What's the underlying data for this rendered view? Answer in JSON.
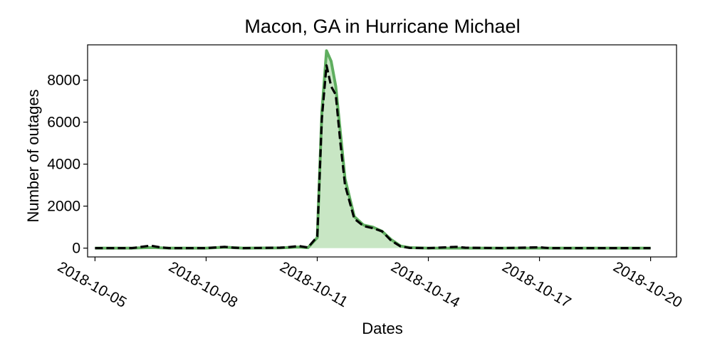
{
  "chart_data": {
    "type": "area",
    "title": "Macon, GA in Hurricane Michael",
    "xlabel": "Dates",
    "ylabel": "Number of outages",
    "x_start": "2018-10-05",
    "x_end": "2018-10-20",
    "xlim": [
      "2018-10-04T19:12",
      "2018-10-20T16:48"
    ],
    "ylim": [
      -420,
      9680
    ],
    "x_ticks": [
      "2018-10-05",
      "2018-10-08",
      "2018-10-11",
      "2018-10-14",
      "2018-10-17",
      "2018-10-20"
    ],
    "y_ticks": [
      0,
      2000,
      4000,
      6000,
      8000
    ],
    "grid": false,
    "legend": "none",
    "series": [
      {
        "style": "filled area, solid green line",
        "color": "#5fae5f",
        "fill": "#c8e6c4",
        "points": [
          [
            "2018-10-05T00:00",
            0
          ],
          [
            "2018-10-06T00:00",
            0
          ],
          [
            "2018-10-06T12:00",
            30
          ],
          [
            "2018-10-07T00:00",
            0
          ],
          [
            "2018-10-08T00:00",
            0
          ],
          [
            "2018-10-08T12:00",
            40
          ],
          [
            "2018-10-09T00:00",
            0
          ],
          [
            "2018-10-10T00:00",
            10
          ],
          [
            "2018-10-10T12:00",
            50
          ],
          [
            "2018-10-10T18:00",
            20
          ],
          [
            "2018-10-11T00:00",
            500
          ],
          [
            "2018-10-11T03:00",
            6500
          ],
          [
            "2018-10-11T06:00",
            9400
          ],
          [
            "2018-10-11T09:00",
            8900
          ],
          [
            "2018-10-11T12:00",
            7700
          ],
          [
            "2018-10-11T15:00",
            5500
          ],
          [
            "2018-10-11T18:00",
            3300
          ],
          [
            "2018-10-12T00:00",
            1500
          ],
          [
            "2018-10-12T06:00",
            1100
          ],
          [
            "2018-10-12T12:00",
            1000
          ],
          [
            "2018-10-12T18:00",
            800
          ],
          [
            "2018-10-13T00:00",
            400
          ],
          [
            "2018-10-13T06:00",
            100
          ],
          [
            "2018-10-13T12:00",
            20
          ],
          [
            "2018-10-14T00:00",
            0
          ],
          [
            "2018-10-15T00:00",
            0
          ],
          [
            "2018-10-16T00:00",
            0
          ],
          [
            "2018-10-17T00:00",
            0
          ],
          [
            "2018-10-18T00:00",
            0
          ],
          [
            "2018-10-19T00:00",
            0
          ],
          [
            "2018-10-20T00:00",
            0
          ]
        ]
      },
      {
        "style": "dashed black line",
        "color": "#000000",
        "points": [
          [
            "2018-10-05T00:00",
            0
          ],
          [
            "2018-10-06T00:00",
            0
          ],
          [
            "2018-10-06T12:00",
            120
          ],
          [
            "2018-10-06T18:00",
            40
          ],
          [
            "2018-10-07T00:00",
            0
          ],
          [
            "2018-10-07T12:00",
            0
          ],
          [
            "2018-10-08T00:00",
            0
          ],
          [
            "2018-10-08T06:00",
            30
          ],
          [
            "2018-10-08T12:00",
            60
          ],
          [
            "2018-10-08T18:00",
            20
          ],
          [
            "2018-10-09T00:00",
            0
          ],
          [
            "2018-10-10T00:00",
            20
          ],
          [
            "2018-10-10T06:00",
            50
          ],
          [
            "2018-10-10T12:00",
            100
          ],
          [
            "2018-10-10T18:00",
            30
          ],
          [
            "2018-10-11T00:00",
            550
          ],
          [
            "2018-10-11T03:00",
            6200
          ],
          [
            "2018-10-11T06:00",
            8700
          ],
          [
            "2018-10-11T09:00",
            7700
          ],
          [
            "2018-10-11T12:00",
            7300
          ],
          [
            "2018-10-11T15:00",
            5000
          ],
          [
            "2018-10-11T18:00",
            3000
          ],
          [
            "2018-10-12T00:00",
            1400
          ],
          [
            "2018-10-12T06:00",
            1050
          ],
          [
            "2018-10-12T12:00",
            950
          ],
          [
            "2018-10-12T18:00",
            800
          ],
          [
            "2018-10-13T00:00",
            350
          ],
          [
            "2018-10-13T06:00",
            80
          ],
          [
            "2018-10-13T12:00",
            10
          ],
          [
            "2018-10-14T00:00",
            0
          ],
          [
            "2018-10-14T18:00",
            60
          ],
          [
            "2018-10-15T00:00",
            20
          ],
          [
            "2018-10-16T00:00",
            0
          ],
          [
            "2018-10-17T00:00",
            40
          ],
          [
            "2018-10-17T06:00",
            0
          ],
          [
            "2018-10-18T00:00",
            0
          ],
          [
            "2018-10-19T00:00",
            0
          ],
          [
            "2018-10-20T00:00",
            0
          ]
        ]
      }
    ]
  }
}
